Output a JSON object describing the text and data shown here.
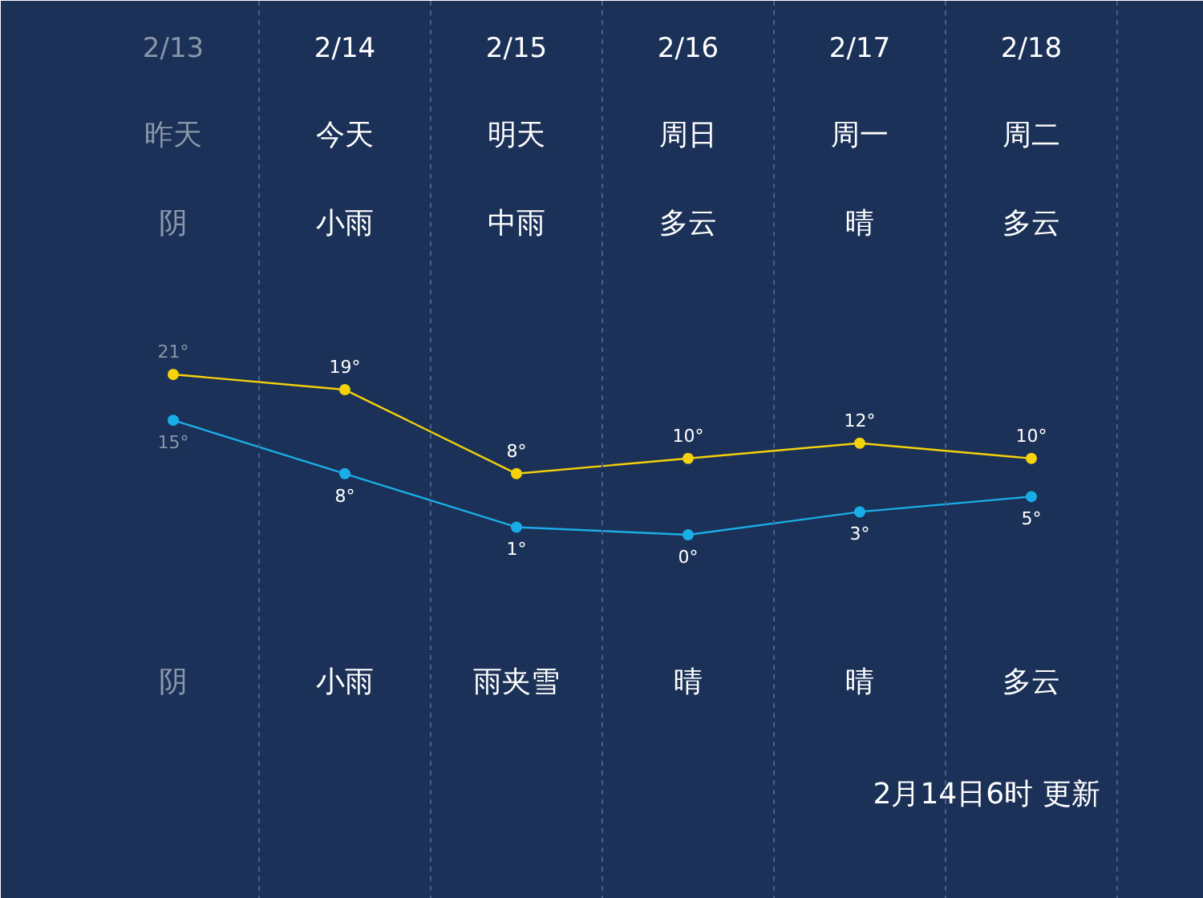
{
  "chart_data": {
    "type": "line",
    "categories": [
      "2/13",
      "2/14",
      "2/15",
      "2/16",
      "2/17",
      "2/18"
    ],
    "series": [
      {
        "color": "#f5d20a",
        "values": [
          21,
          19,
          8,
          10,
          12,
          10
        ],
        "value_labels": [
          "21°",
          "19°",
          "8°",
          "10°",
          "12°",
          "10°"
        ]
      },
      {
        "color": "#1aaee8",
        "values": [
          15,
          8,
          1,
          0,
          3,
          5
        ],
        "value_labels": [
          "15°",
          "8°",
          "1°",
          "0°",
          "3°",
          "5°"
        ]
      }
    ],
    "annotations": [
      "昨天",
      "今天",
      "明天",
      "周日",
      "周一",
      "周二",
      "阴",
      "小雨",
      "中雨",
      "多云",
      "晴",
      "多云",
      "阴",
      "小雨",
      "雨夹雪",
      "晴",
      "晴",
      "多云",
      "2月14日6时 更新"
    ],
    "marker": "circle",
    "grid": "x"
  }
}
